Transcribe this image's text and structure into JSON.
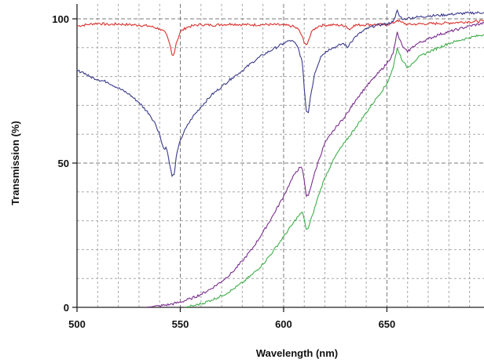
{
  "chart_data": {
    "type": "line",
    "title": "",
    "xlabel": "Wavelength (nm)",
    "ylabel": "Transmission (%)",
    "xlim": [
      500,
      697
    ],
    "ylim": [
      0,
      100
    ],
    "x_ticks": [
      500,
      550,
      600,
      650
    ],
    "y_ticks": [
      0,
      50,
      100
    ],
    "x_minor_step": 10,
    "y_minor_step": 10,
    "grid": true,
    "legend": false,
    "series": [
      {
        "color": "#d9302c",
        "points": [
          [
            500,
            97.5
          ],
          [
            505,
            98.0
          ],
          [
            510,
            98.5
          ],
          [
            515,
            98.0
          ],
          [
            520,
            98.2
          ],
          [
            525,
            98.0
          ],
          [
            530,
            97.8
          ],
          [
            535,
            97.5
          ],
          [
            540,
            96.5
          ],
          [
            543,
            95.0
          ],
          [
            545,
            91.0
          ],
          [
            546,
            87.5
          ],
          [
            547,
            88.0
          ],
          [
            548,
            91.5
          ],
          [
            550,
            95.5
          ],
          [
            553,
            97.0
          ],
          [
            556,
            97.6
          ],
          [
            560,
            98.0
          ],
          [
            565,
            97.8
          ],
          [
            570,
            98.0
          ],
          [
            575,
            98.2
          ],
          [
            580,
            98.0
          ],
          [
            585,
            97.9
          ],
          [
            590,
            98.0
          ],
          [
            595,
            98.0
          ],
          [
            600,
            97.8
          ],
          [
            604,
            97.5
          ],
          [
            607,
            96.5
          ],
          [
            609,
            94.0
          ],
          [
            610,
            91.5
          ],
          [
            611,
            91.0
          ],
          [
            612,
            92.5
          ],
          [
            614,
            96.0
          ],
          [
            617,
            97.5
          ],
          [
            620,
            97.8
          ],
          [
            625,
            97.9
          ],
          [
            630,
            97.6
          ],
          [
            632,
            96.2
          ],
          [
            634,
            97.8
          ],
          [
            640,
            98.0
          ],
          [
            645,
            98.0
          ],
          [
            650,
            98.0
          ],
          [
            653,
            98.5
          ],
          [
            655,
            99.5
          ],
          [
            657,
            98.8
          ],
          [
            660,
            98.0
          ],
          [
            665,
            98.2
          ],
          [
            670,
            98.3
          ],
          [
            675,
            98.4
          ],
          [
            680,
            98.6
          ],
          [
            685,
            98.8
          ],
          [
            690,
            99.0
          ],
          [
            697,
            99.2
          ]
        ]
      },
      {
        "color": "#3a3a8c",
        "points": [
          [
            500,
            82.0
          ],
          [
            503,
            81.5
          ],
          [
            506,
            80.0
          ],
          [
            510,
            79.0
          ],
          [
            515,
            78.0
          ],
          [
            520,
            76.0
          ],
          [
            525,
            74.0
          ],
          [
            530,
            71.0
          ],
          [
            535,
            67.0
          ],
          [
            538,
            63.5
          ],
          [
            540,
            60.0
          ],
          [
            541,
            57.0
          ],
          [
            542,
            55.0
          ],
          [
            543,
            55.5
          ],
          [
            544,
            53.0
          ],
          [
            545,
            49.0
          ],
          [
            546,
            45.5
          ],
          [
            547,
            46.0
          ],
          [
            548,
            52.0
          ],
          [
            550,
            58.0
          ],
          [
            553,
            62.5
          ],
          [
            556,
            66.0
          ],
          [
            560,
            69.5
          ],
          [
            565,
            73.5
          ],
          [
            570,
            76.5
          ],
          [
            575,
            79.5
          ],
          [
            580,
            82.0
          ],
          [
            585,
            85.0
          ],
          [
            590,
            87.5
          ],
          [
            595,
            89.5
          ],
          [
            600,
            91.5
          ],
          [
            603,
            92.5
          ],
          [
            605,
            92.0
          ],
          [
            607,
            90.0
          ],
          [
            609,
            85.0
          ],
          [
            610,
            76.0
          ],
          [
            611,
            68.0
          ],
          [
            612,
            67.5
          ],
          [
            613,
            73.0
          ],
          [
            615,
            81.0
          ],
          [
            618,
            87.0
          ],
          [
            622,
            89.5
          ],
          [
            626,
            90.5
          ],
          [
            629,
            91.5
          ],
          [
            631,
            90.0
          ],
          [
            632,
            91.5
          ],
          [
            635,
            94.0
          ],
          [
            640,
            96.5
          ],
          [
            645,
            97.8
          ],
          [
            650,
            98.2
          ],
          [
            653,
            99.0
          ],
          [
            654,
            100.5
          ],
          [
            655,
            103.0
          ],
          [
            656,
            101.0
          ],
          [
            658,
            99.8
          ],
          [
            660,
            100.2
          ],
          [
            665,
            100.6
          ],
          [
            670,
            101.0
          ],
          [
            675,
            101.2
          ],
          [
            680,
            101.5
          ],
          [
            685,
            101.8
          ],
          [
            690,
            102.0
          ],
          [
            697,
            102.2
          ]
        ]
      },
      {
        "color": "#7a2e8e",
        "points": [
          [
            533,
            0.0
          ],
          [
            536,
            0.2
          ],
          [
            540,
            0.5
          ],
          [
            545,
            1.0
          ],
          [
            550,
            1.8
          ],
          [
            555,
            3.0
          ],
          [
            560,
            4.5
          ],
          [
            565,
            6.5
          ],
          [
            570,
            9.0
          ],
          [
            575,
            12.0
          ],
          [
            580,
            16.0
          ],
          [
            585,
            20.5
          ],
          [
            590,
            26.0
          ],
          [
            595,
            32.0
          ],
          [
            600,
            38.5
          ],
          [
            603,
            43.0
          ],
          [
            606,
            47.0
          ],
          [
            608,
            48.5
          ],
          [
            609,
            48.0
          ],
          [
            610,
            44.0
          ],
          [
            611,
            38.5
          ],
          [
            612,
            38.8
          ],
          [
            614,
            44.0
          ],
          [
            617,
            51.0
          ],
          [
            620,
            57.0
          ],
          [
            623,
            60.0
          ],
          [
            626,
            63.0
          ],
          [
            629,
            65.5
          ],
          [
            632,
            68.5
          ],
          [
            635,
            72.0
          ],
          [
            640,
            76.5
          ],
          [
            645,
            80.5
          ],
          [
            650,
            84.5
          ],
          [
            653,
            88.0
          ],
          [
            654,
            91.5
          ],
          [
            655,
            95.5
          ],
          [
            656,
            93.0
          ],
          [
            658,
            90.0
          ],
          [
            660,
            88.5
          ],
          [
            662,
            90.0
          ],
          [
            665,
            91.5
          ],
          [
            670,
            93.0
          ],
          [
            675,
            94.5
          ],
          [
            680,
            95.5
          ],
          [
            685,
            96.5
          ],
          [
            690,
            97.5
          ],
          [
            697,
            98.5
          ]
        ]
      },
      {
        "color": "#3fae4a",
        "points": [
          [
            552,
            0.0
          ],
          [
            556,
            0.5
          ],
          [
            560,
            1.2
          ],
          [
            565,
            2.5
          ],
          [
            570,
            4.0
          ],
          [
            575,
            6.0
          ],
          [
            580,
            8.5
          ],
          [
            585,
            11.5
          ],
          [
            590,
            15.0
          ],
          [
            595,
            19.5
          ],
          [
            600,
            24.5
          ],
          [
            604,
            28.5
          ],
          [
            607,
            31.5
          ],
          [
            609,
            33.0
          ],
          [
            610,
            30.5
          ],
          [
            611,
            27.0
          ],
          [
            612,
            27.5
          ],
          [
            614,
            32.0
          ],
          [
            617,
            39.0
          ],
          [
            620,
            45.0
          ],
          [
            623,
            49.5
          ],
          [
            626,
            53.5
          ],
          [
            630,
            57.5
          ],
          [
            635,
            62.5
          ],
          [
            640,
            67.5
          ],
          [
            645,
            72.5
          ],
          [
            650,
            77.5
          ],
          [
            653,
            83.0
          ],
          [
            655,
            90.0
          ],
          [
            656,
            88.0
          ],
          [
            658,
            85.0
          ],
          [
            660,
            83.0
          ],
          [
            662,
            84.5
          ],
          [
            665,
            86.5
          ],
          [
            670,
            88.5
          ],
          [
            675,
            90.0
          ],
          [
            680,
            91.5
          ],
          [
            685,
            92.5
          ],
          [
            690,
            93.5
          ],
          [
            697,
            94.5
          ]
        ]
      }
    ]
  }
}
